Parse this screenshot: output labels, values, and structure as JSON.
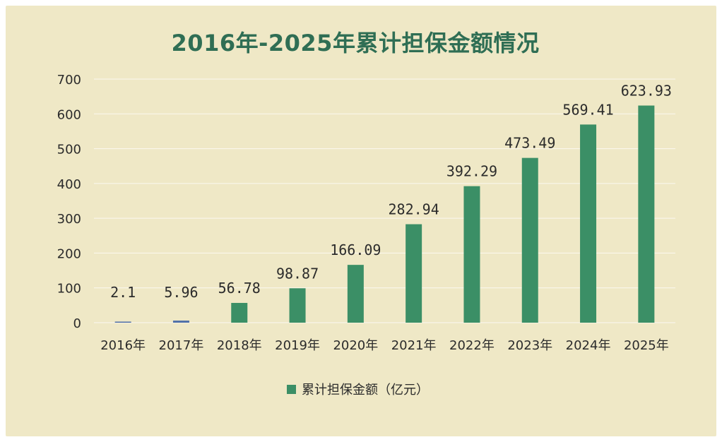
{
  "colors": {
    "background": "#efe8c6",
    "bar": "#3b8f66",
    "bar_small": "#4f6fa8",
    "title": "#2f6e54",
    "text": "#2b2b2b",
    "grid": "#ffffff"
  },
  "chart_data": {
    "type": "bar",
    "title": "2016年-2025年累计担保金额情况",
    "categories": [
      "2016年",
      "2017年",
      "2018年",
      "2019年",
      "2020年",
      "2021年",
      "2022年",
      "2023年",
      "2024年",
      "2025年"
    ],
    "series": [
      {
        "name": "累计担保金额（亿元）",
        "values": [
          2.1,
          5.96,
          56.78,
          98.87,
          166.09,
          282.94,
          392.29,
          473.49,
          569.41,
          623.93
        ],
        "labels": [
          "2.1",
          "5.96",
          "56.78",
          "98.87",
          "166.09",
          "282.94",
          "392.29",
          "473.49",
          "569.41",
          "623.93"
        ]
      }
    ],
    "yticks": [
      "0",
      "100",
      "200",
      "300",
      "400",
      "500",
      "600",
      "700"
    ],
    "ylim": [
      0,
      700
    ],
    "grid": true,
    "legend_position": "bottom"
  }
}
